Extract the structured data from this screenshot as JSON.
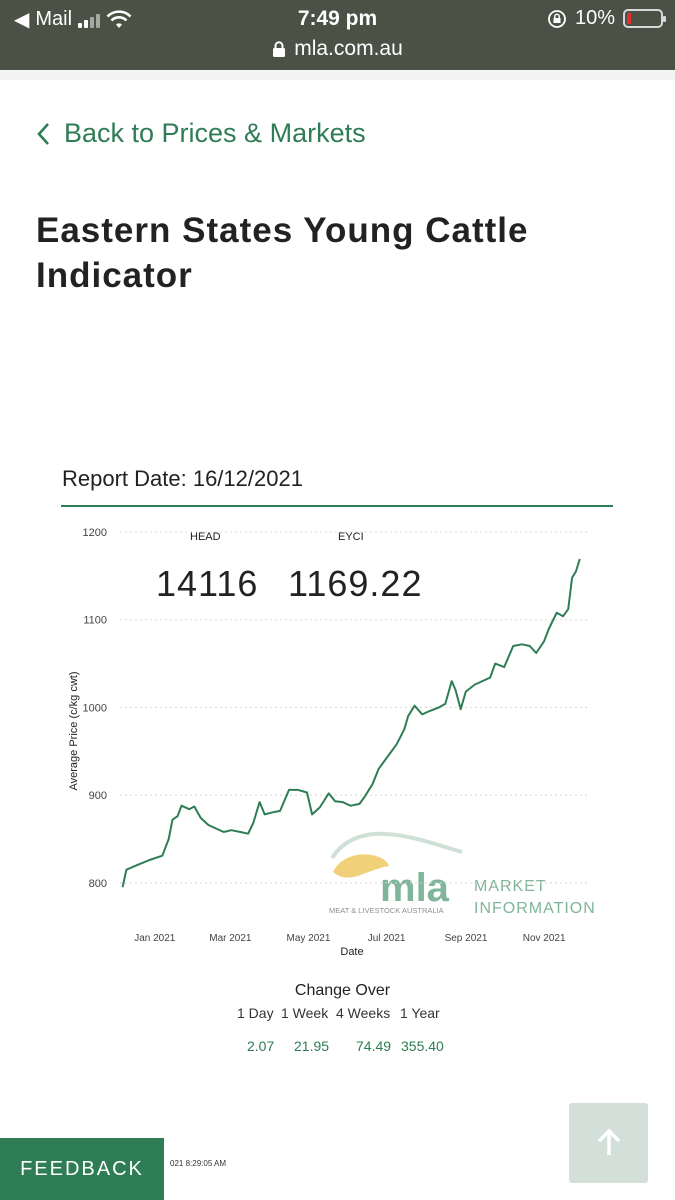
{
  "status_bar": {
    "back_app": "Mail",
    "time": "7:49 pm",
    "battery": "10%",
    "battery_level": 0.1,
    "url": "mla.com.au"
  },
  "page": {
    "back_link": "Back to Prices & Markets",
    "title": "Eastern States Young Cattle Indicator"
  },
  "report": {
    "date_label": "Report Date: 16/12/2021",
    "head_label": "HEAD",
    "head_value": "14116",
    "eyci_label": "EYCI",
    "eyci_value": "1169.22"
  },
  "watermark": {
    "brand": "mla",
    "subtitle": "MEAT & LIVESTOCK AUSTRALIA",
    "line1": "MARKET",
    "line2": "INFORMATION"
  },
  "colors": {
    "accent": "#2e7d55",
    "status_bar": "#4b5245",
    "watermark_yellow": "#f0d078",
    "watermark_green": "#7fb59a"
  },
  "chart_data": {
    "type": "line",
    "xlabel": "Date",
    "ylabel": "Average Price (c/kg cwt)",
    "ylim": [
      785,
      1200
    ],
    "y_ticks": [
      "800",
      "900",
      "1000",
      "1100",
      "1200"
    ],
    "y_tick_values": [
      800,
      900,
      1000,
      1100,
      1200
    ],
    "x_ticks": [
      "Jan 2021",
      "Mar 2021",
      "May 2021",
      "Jul 2021",
      "Sep 2021",
      "Nov 2021"
    ],
    "x_tick_dates": [
      "2021-01-01",
      "2021-03-01",
      "2021-05-01",
      "2021-07-01",
      "2021-09-01",
      "2021-11-01"
    ],
    "x_range": [
      "2020-12-22",
      "2021-12-24"
    ],
    "grid": true,
    "series": [
      {
        "color": "#2e7d55",
        "points": [
          [
            "2020-12-24",
            795
          ],
          [
            "2020-12-27",
            815
          ],
          [
            "2021-01-04",
            820
          ],
          [
            "2021-01-14",
            826
          ],
          [
            "2021-01-24",
            831
          ],
          [
            "2021-01-29",
            850
          ],
          [
            "2021-02-01",
            872
          ],
          [
            "2021-02-05",
            876
          ],
          [
            "2021-02-08",
            888
          ],
          [
            "2021-02-14",
            884
          ],
          [
            "2021-02-18",
            887
          ],
          [
            "2021-02-23",
            874
          ],
          [
            "2021-03-01",
            866
          ],
          [
            "2021-03-07",
            862
          ],
          [
            "2021-03-13",
            858
          ],
          [
            "2021-03-19",
            860
          ],
          [
            "2021-03-26",
            858
          ],
          [
            "2021-04-01",
            856
          ],
          [
            "2021-04-05",
            868
          ],
          [
            "2021-04-10",
            892
          ],
          [
            "2021-04-14",
            878
          ],
          [
            "2021-04-19",
            880
          ],
          [
            "2021-04-26",
            882
          ],
          [
            "2021-05-03",
            906
          ],
          [
            "2021-05-10",
            906
          ],
          [
            "2021-05-17",
            903
          ],
          [
            "2021-05-21",
            878
          ],
          [
            "2021-05-27",
            886
          ],
          [
            "2021-06-03",
            902
          ],
          [
            "2021-06-08",
            893
          ],
          [
            "2021-06-14",
            892
          ],
          [
            "2021-06-20",
            888
          ],
          [
            "2021-06-27",
            890
          ],
          [
            "2021-07-01",
            898
          ],
          [
            "2021-07-04",
            905
          ],
          [
            "2021-07-07",
            912
          ],
          [
            "2021-07-12",
            930
          ],
          [
            "2021-07-19",
            944
          ],
          [
            "2021-07-26",
            958
          ],
          [
            "2021-08-01",
            975
          ],
          [
            "2021-08-04",
            990
          ],
          [
            "2021-08-09",
            1002
          ],
          [
            "2021-08-15",
            992
          ],
          [
            "2021-08-21",
            996
          ],
          [
            "2021-08-28",
            1000
          ],
          [
            "2021-09-02",
            1004
          ],
          [
            "2021-09-07",
            1030
          ],
          [
            "2021-09-10",
            1020
          ],
          [
            "2021-09-14",
            998
          ],
          [
            "2021-09-18",
            1018
          ],
          [
            "2021-09-25",
            1026
          ],
          [
            "2021-10-01",
            1030
          ],
          [
            "2021-10-07",
            1034
          ],
          [
            "2021-10-11",
            1050
          ],
          [
            "2021-10-18",
            1046
          ],
          [
            "2021-10-25",
            1070
          ],
          [
            "2021-11-01",
            1072
          ],
          [
            "2021-11-07",
            1070
          ],
          [
            "2021-11-12",
            1062
          ],
          [
            "2021-11-18",
            1075
          ],
          [
            "2021-11-22",
            1090
          ],
          [
            "2021-11-28",
            1108
          ],
          [
            "2021-12-03",
            1104
          ],
          [
            "2021-12-07",
            1112
          ],
          [
            "2021-12-10",
            1148
          ],
          [
            "2021-12-13",
            1155
          ],
          [
            "2021-12-16",
            1169.22
          ]
        ]
      }
    ]
  },
  "change_over": {
    "title": "Change Over",
    "columns": [
      {
        "label": "1 Day",
        "value": "2.07"
      },
      {
        "label": "1 Week",
        "value": "21.95"
      },
      {
        "label": "4 Weeks",
        "value": "74.49"
      },
      {
        "label": "1 Year",
        "value": "355.40"
      }
    ]
  },
  "footer": {
    "feedback": "FEEDBACK",
    "timestamp": "021 8:29:05 AM"
  }
}
